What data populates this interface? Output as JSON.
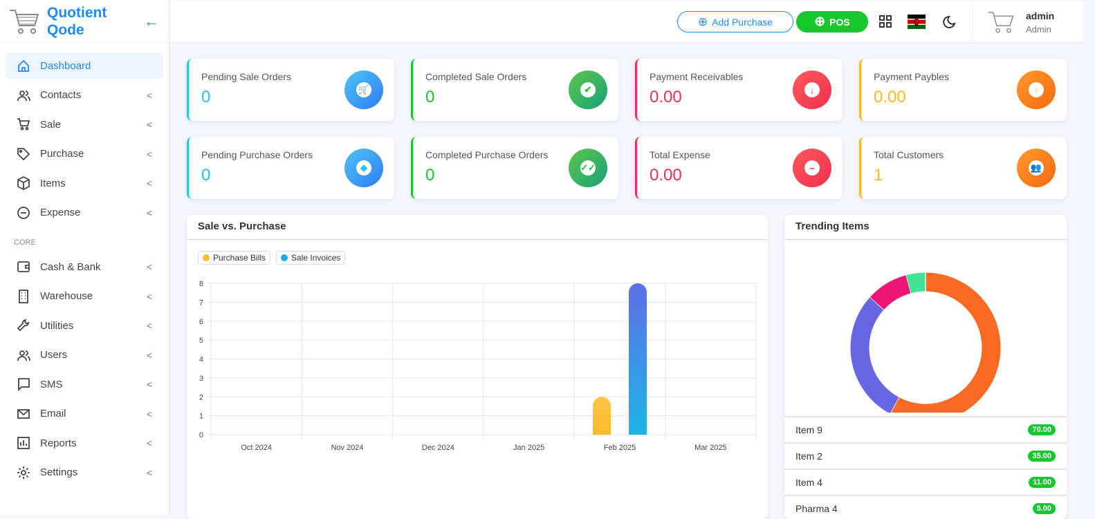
{
  "brand": {
    "name": "Quotient Qode"
  },
  "sidebar": {
    "items": [
      {
        "label": "Dashboard",
        "icon": "home-icon",
        "active": true
      },
      {
        "label": "Contacts",
        "icon": "users-icon"
      },
      {
        "label": "Sale",
        "icon": "cart-icon"
      },
      {
        "label": "Purchase",
        "icon": "tag-icon"
      },
      {
        "label": "Items",
        "icon": "box-icon"
      },
      {
        "label": "Expense",
        "icon": "minus-circle-icon"
      }
    ],
    "section": "CORE",
    "core_items": [
      {
        "label": "Cash & Bank",
        "icon": "wallet-icon"
      },
      {
        "label": "Warehouse",
        "icon": "building-icon"
      },
      {
        "label": "Utilities",
        "icon": "wrench-icon"
      },
      {
        "label": "Users",
        "icon": "users-icon"
      },
      {
        "label": "SMS",
        "icon": "message-icon"
      },
      {
        "label": "Email",
        "icon": "mail-icon"
      },
      {
        "label": "Reports",
        "icon": "chart-icon"
      },
      {
        "label": "Settings",
        "icon": "gear-icon"
      }
    ]
  },
  "header": {
    "add_purchase": "Add Purchase",
    "pos": "POS",
    "user_name": "admin",
    "user_role": "Admin"
  },
  "cards": [
    {
      "title": "Pending Sale Orders",
      "value": "0",
      "color": "#1ec8e8",
      "valcolor": "#1ec8e8",
      "grad": "linear-gradient(135deg,#4fc3f7,#2f7cf0)",
      "icon": "cart-icon"
    },
    {
      "title": "Completed Sale Orders",
      "value": "0",
      "color": "#16c72e",
      "valcolor": "#16c72e",
      "grad": "linear-gradient(135deg,#5cc44a,#17a37a)",
      "icon": "check-circle-icon"
    },
    {
      "title": "Payment Receivables",
      "value": "0.00",
      "color": "#f0304f",
      "valcolor": "#f0304f",
      "grad": "linear-gradient(135deg,#ff5a5a,#f0304f)",
      "icon": "arrow-down-circle-icon"
    },
    {
      "title": "Payment Paybles",
      "value": "0.00",
      "color": "#fdbb1a",
      "valcolor": "#fdbb1a",
      "grad": "linear-gradient(135deg,#ff9a2a,#f56a12)",
      "icon": "arrow-up-circle-icon"
    },
    {
      "title": "Pending Purchase Orders",
      "value": "0",
      "color": "#1ec8e8",
      "valcolor": "#1ec8e8",
      "grad": "linear-gradient(135deg,#4fc3f7,#2f7cf0)",
      "icon": "tag-icon"
    },
    {
      "title": "Completed Purchase Orders",
      "value": "0",
      "color": "#16c72e",
      "valcolor": "#16c72e",
      "grad": "linear-gradient(135deg,#5cc44a,#17a37a)",
      "icon": "double-check-icon"
    },
    {
      "title": "Total Expense",
      "value": "0.00",
      "color": "#f0304f",
      "valcolor": "#f0304f",
      "grad": "linear-gradient(135deg,#ff5a5a,#f0304f)",
      "icon": "minus-circle-icon"
    },
    {
      "title": "Total Customers",
      "value": "1",
      "color": "#fdbb1a",
      "valcolor": "#fdbb1a",
      "grad": "linear-gradient(135deg,#ff9a2a,#f56a12)",
      "icon": "users-icon"
    }
  ],
  "chart_data": [
    {
      "type": "bar",
      "title": "Sale vs. Purchase",
      "categories": [
        "Oct 2024",
        "Nov 2024",
        "Dec 2024",
        "Jan 2025",
        "Feb 2025",
        "Mar 2025"
      ],
      "series": [
        {
          "name": "Purchase Bills",
          "color": "#fdbb2d",
          "values": [
            0,
            0,
            0,
            0,
            2,
            0
          ]
        },
        {
          "name": "Sale Invoices",
          "color": "#1ca9e6",
          "values": [
            0,
            0,
            0,
            0,
            8,
            0
          ]
        }
      ],
      "ylim": [
        0,
        8
      ],
      "yticks": [
        "0",
        "1",
        "2",
        "3",
        "4",
        "5",
        "6",
        "7",
        "8"
      ],
      "grid": true,
      "legend": "top-left"
    },
    {
      "type": "pie",
      "title": "Trending Items",
      "categories": [
        "Item 9",
        "Item 2",
        "Item 4",
        "Pharma 4"
      ],
      "values": [
        70,
        35,
        11,
        5
      ],
      "display_values": [
        "70.00",
        "35.00",
        "11.00",
        "5.00"
      ],
      "colors": [
        "#fb6a22",
        "#6767e4",
        "#ee1675",
        "#43e396"
      ],
      "donut": true
    }
  ]
}
